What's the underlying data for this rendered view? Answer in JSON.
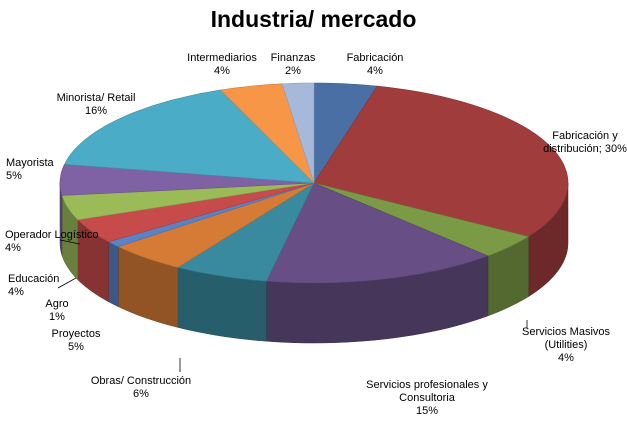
{
  "chart_data": {
    "type": "pie",
    "title": "Industria/ mercado",
    "slices": [
      {
        "label": "Fabricación",
        "pct_label": "4%",
        "value": 4,
        "color": "#4a6fa5"
      },
      {
        "label": "Fabricación y distribución; 30%",
        "pct_label": "",
        "value": 30,
        "color": "#a03c3c"
      },
      {
        "label": "Servicios Masivos (Utilities)",
        "pct_label": "4%",
        "value": 4,
        "color": "#7a9a45"
      },
      {
        "label": "Servicios profesionales y Consultoria",
        "pct_label": "15%",
        "value": 15,
        "color": "#674f85"
      },
      {
        "label": "Obras/ Construcción",
        "pct_label": "6%",
        "value": 6,
        "color": "#3a8a9f"
      },
      {
        "label": "Proyectos",
        "pct_label": "5%",
        "value": 5,
        "color": "#d67b35"
      },
      {
        "label": "Agro",
        "pct_label": "1%",
        "value": 1,
        "color": "#5b82c4"
      },
      {
        "label": "Educación",
        "pct_label": "4%",
        "value": 4,
        "color": "#c84b4b"
      },
      {
        "label": "Operador Logístico",
        "pct_label": "4%",
        "value": 4,
        "color": "#9bbb59"
      },
      {
        "label": "Mayorista",
        "pct_label": "5%",
        "value": 5,
        "color": "#7f62a3"
      },
      {
        "label": "Minorista/ Retail",
        "pct_label": "16%",
        "value": 16,
        "color": "#4aacc6"
      },
      {
        "label": "Intermediarios",
        "pct_label": "4%",
        "value": 4,
        "color": "#f79646"
      },
      {
        "label": "Finanzas",
        "pct_label": "2%",
        "value": 2,
        "color": "#a7b9db"
      }
    ]
  }
}
